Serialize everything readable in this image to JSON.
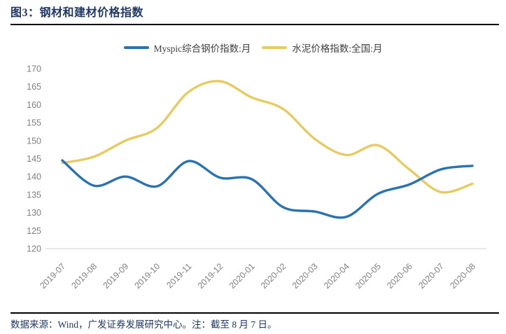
{
  "figure": {
    "title": "图3：钢材和建材价格指数",
    "source_note": "数据来源：Wind，广发证券发展研究中心。注：截至 8 月 7 日。"
  },
  "colors": {
    "title_navy": "#1F3864",
    "steel_line": "#2A72B0",
    "cement_line": "#E6CB62",
    "tick_gray": "#7F7F7F",
    "axis_line_gray": "#D9D9D9",
    "rule_black": "#000000"
  },
  "chart_data": {
    "type": "line",
    "categories": [
      "2019-07",
      "2019-08",
      "2019-09",
      "2019-10",
      "2019-11",
      "2019-12",
      "2020-01",
      "2020-02",
      "2020-03",
      "2020-04",
      "2020-05",
      "2020-06",
      "2020-07",
      "2020-08"
    ],
    "series": [
      {
        "name": "Myspic综合钢价指数:月",
        "color": "#2A72B0",
        "values": [
          144.5,
          137.5,
          140.0,
          137.3,
          144.3,
          139.7,
          139.3,
          131.5,
          130.3,
          128.8,
          135.2,
          137.8,
          142.0,
          143.0
        ]
      },
      {
        "name": "水泥价格指数:全国:月",
        "color": "#E6CB62",
        "values": [
          143.8,
          145.5,
          150.0,
          153.5,
          163.5,
          166.5,
          162.0,
          158.8,
          150.5,
          146.0,
          148.7,
          142.0,
          135.7,
          138.0
        ]
      }
    ],
    "title": "钢材和建材价格指数",
    "xlabel": "",
    "ylabel": "",
    "ylim": [
      120,
      170
    ],
    "ytick_step": 5,
    "yticks": [
      120,
      125,
      130,
      135,
      140,
      145,
      150,
      155,
      160,
      165,
      170
    ],
    "grid": false,
    "legend_position": "top",
    "x_label_rotation_deg": -45,
    "smoothing": "spline"
  }
}
